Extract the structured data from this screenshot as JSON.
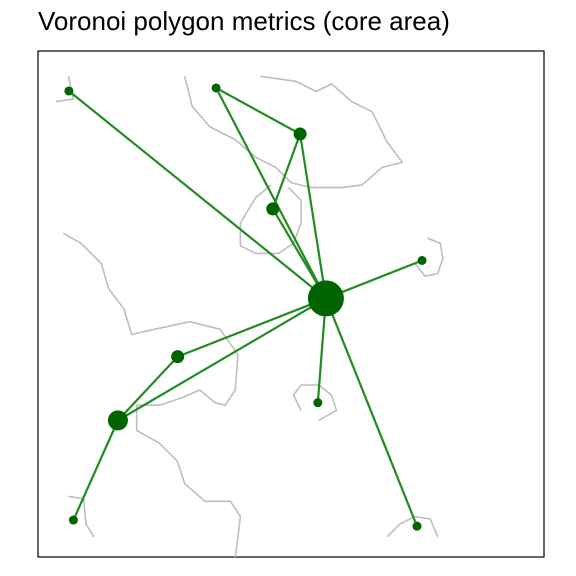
{
  "title": "Voronoi polygon metrics (core area)",
  "colors": {
    "edge": "#228B22",
    "node": "#006400",
    "boundary": "#BEBEBE",
    "panel_border": "#000000",
    "background": "#FFFFFF"
  },
  "chart_data": {
    "type": "network",
    "title": "Voronoi polygon metrics (core area)",
    "xlim": [
      0,
      100
    ],
    "ylim": [
      0,
      100
    ],
    "grid": false,
    "nodes": [
      {
        "id": "hub",
        "x": 56.9,
        "y": 51.1,
        "size": "large"
      },
      {
        "id": "n1",
        "x": 6.1,
        "y": 92.1,
        "size": "small"
      },
      {
        "id": "n2",
        "x": 35.2,
        "y": 92.7,
        "size": "small"
      },
      {
        "id": "n3",
        "x": 51.8,
        "y": 83.6,
        "size": "medium"
      },
      {
        "id": "n4",
        "x": 46.4,
        "y": 68.8,
        "size": "medium"
      },
      {
        "id": "n5",
        "x": 75.9,
        "y": 58.6,
        "size": "small"
      },
      {
        "id": "n6",
        "x": 27.6,
        "y": 39.6,
        "size": "medium"
      },
      {
        "id": "n7",
        "x": 15.8,
        "y": 27.0,
        "size": "medium-large"
      },
      {
        "id": "n8",
        "x": 55.3,
        "y": 30.5,
        "size": "small"
      },
      {
        "id": "n9",
        "x": 7.0,
        "y": 7.3,
        "size": "small"
      },
      {
        "id": "n10",
        "x": 74.9,
        "y": 6.1,
        "size": "small"
      }
    ],
    "edges": [
      [
        "n1",
        "hub"
      ],
      [
        "n2",
        "n3"
      ],
      [
        "n2",
        "hub"
      ],
      [
        "n3",
        "n4"
      ],
      [
        "n3",
        "hub"
      ],
      [
        "n4",
        "hub"
      ],
      [
        "n5",
        "hub"
      ],
      [
        "n6",
        "hub"
      ],
      [
        "n6",
        "n7"
      ],
      [
        "n7",
        "hub"
      ],
      [
        "n7",
        "n9"
      ],
      [
        "n8",
        "hub"
      ],
      [
        "n10",
        "hub"
      ]
    ],
    "boundaries": [
      {
        "name": "boundary-top-left",
        "points": [
          [
            6,
            95
          ],
          [
            7,
            90.5
          ],
          [
            3.5,
            90
          ]
        ]
      },
      {
        "name": "boundary-top-center",
        "points": [
          [
            29,
            95
          ],
          [
            30.5,
            89
          ],
          [
            34,
            85
          ],
          [
            39,
            82.5
          ],
          [
            43,
            79
          ],
          [
            47,
            77
          ],
          [
            50,
            74
          ],
          [
            54,
            73
          ],
          [
            60,
            73
          ],
          [
            64,
            73.5
          ],
          [
            68,
            77
          ],
          [
            72,
            78
          ],
          [
            69,
            82
          ],
          [
            66,
            88
          ],
          [
            62,
            90
          ],
          [
            58,
            93.5
          ],
          [
            55,
            92
          ],
          [
            51,
            94
          ],
          [
            44,
            95
          ]
        ]
      },
      {
        "name": "boundary-center-lake",
        "points": [
          [
            46,
            73.5
          ],
          [
            43,
            71
          ],
          [
            40,
            66
          ],
          [
            40,
            61.5
          ],
          [
            43,
            60
          ],
          [
            47.5,
            60
          ],
          [
            50.5,
            62
          ],
          [
            52,
            66
          ],
          [
            52,
            70.5
          ],
          [
            49.5,
            73
          ]
        ]
      },
      {
        "name": "boundary-right-lake",
        "points": [
          [
            74.5,
            58
          ],
          [
            76.5,
            55.5
          ],
          [
            79,
            56
          ],
          [
            80,
            59
          ],
          [
            79.5,
            62
          ],
          [
            77,
            63
          ]
        ]
      },
      {
        "name": "boundary-left",
        "points": [
          [
            5,
            64
          ],
          [
            8.5,
            62
          ],
          [
            12.5,
            58
          ],
          [
            14,
            53
          ],
          [
            17,
            49
          ],
          [
            18.5,
            44
          ],
          [
            23,
            45
          ],
          [
            30,
            46.5
          ],
          [
            36,
            45
          ],
          [
            39.5,
            40
          ],
          [
            39,
            33
          ],
          [
            37,
            30
          ],
          [
            35,
            30.5
          ],
          [
            32,
            33
          ],
          [
            28.5,
            31.5
          ],
          [
            24,
            30
          ],
          [
            19.5,
            30
          ],
          [
            19.5,
            25
          ],
          [
            24,
            22.5
          ],
          [
            27.5,
            19
          ],
          [
            29,
            14.5
          ],
          [
            33,
            11
          ],
          [
            38,
            11
          ],
          [
            40,
            8
          ],
          [
            39.5,
            4
          ],
          [
            39,
            0
          ]
        ]
      },
      {
        "name": "boundary-bottom-center-lake",
        "points": [
          [
            52,
            29
          ],
          [
            50.5,
            32
          ],
          [
            52,
            34
          ],
          [
            55.5,
            34
          ],
          [
            58,
            32
          ],
          [
            59,
            29
          ],
          [
            55.5,
            27
          ]
        ]
      },
      {
        "name": "boundary-bottom-left",
        "points": [
          [
            6,
            12
          ],
          [
            9,
            11.5
          ],
          [
            9.5,
            6.5
          ],
          [
            11,
            4
          ]
        ]
      },
      {
        "name": "boundary-bottom-right",
        "points": [
          [
            69,
            4
          ],
          [
            71.5,
            6.5
          ],
          [
            74.5,
            8
          ],
          [
            77.5,
            7.5
          ],
          [
            79,
            4
          ]
        ]
      }
    ]
  }
}
